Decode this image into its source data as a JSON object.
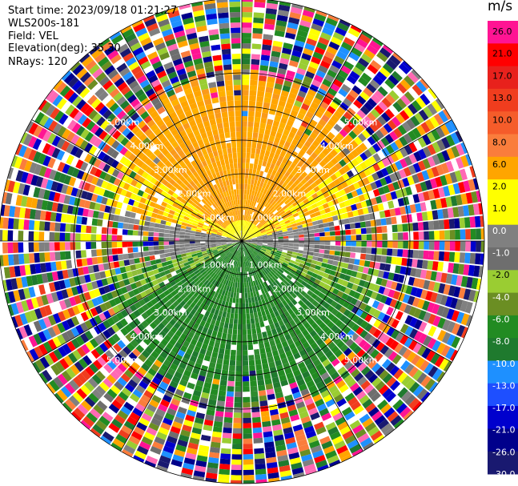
{
  "header": {
    "start_time": "Start time: 2023/09/18 01:21:27",
    "site": "WLS200s-181",
    "field": "Field: VEL",
    "elevation": "Elevation(deg): 35.30",
    "nrays": "NRays: 120"
  },
  "chart_data": {
    "type": "ppi",
    "field": "VEL",
    "nrays": 120,
    "range_rings_km": [
      "1.00km",
      "2.00km",
      "3.00km",
      "4.00km",
      "5.00km"
    ],
    "ring_label_angles_deg": [
      45,
      135,
      225,
      315
    ],
    "spoke_angles_deg": [
      0,
      30,
      60,
      90,
      120,
      150,
      180,
      210,
      240,
      270,
      300,
      330
    ],
    "colorbar": {
      "unit": "m/s",
      "ticks": [
        "26.0",
        "21.0",
        "17.0",
        "13.0",
        "10.0",
        "8.0",
        "6.0",
        "2.0",
        "1.0",
        "0.0",
        "-1.0",
        "-2.0",
        "-4.0",
        "-6.0",
        "-8.0",
        "-10.0",
        "-13.0",
        "-17.0",
        "-21.0",
        "-26.0",
        "-30.0"
      ],
      "colors": [
        "#ff1493",
        "#ff0000",
        "#e8211c",
        "#f03d1e",
        "#f55c2a",
        "#fa7d3c",
        "#ffa500",
        "#ffff00",
        "#ffff00",
        "#808080",
        "#6e6e6e",
        "#9acd32",
        "#6b8e23",
        "#228b22",
        "#1f7a2e",
        "#1e90ff",
        "#1e4fff",
        "#0000cd",
        "#00008b",
        "#191970"
      ]
    },
    "near_field_pattern": {
      "north": "orange/yellow (+2 to +8 m/s)",
      "south": "green (-2 to -8 m/s)",
      "east_west": "grey (0 m/s)"
    }
  }
}
